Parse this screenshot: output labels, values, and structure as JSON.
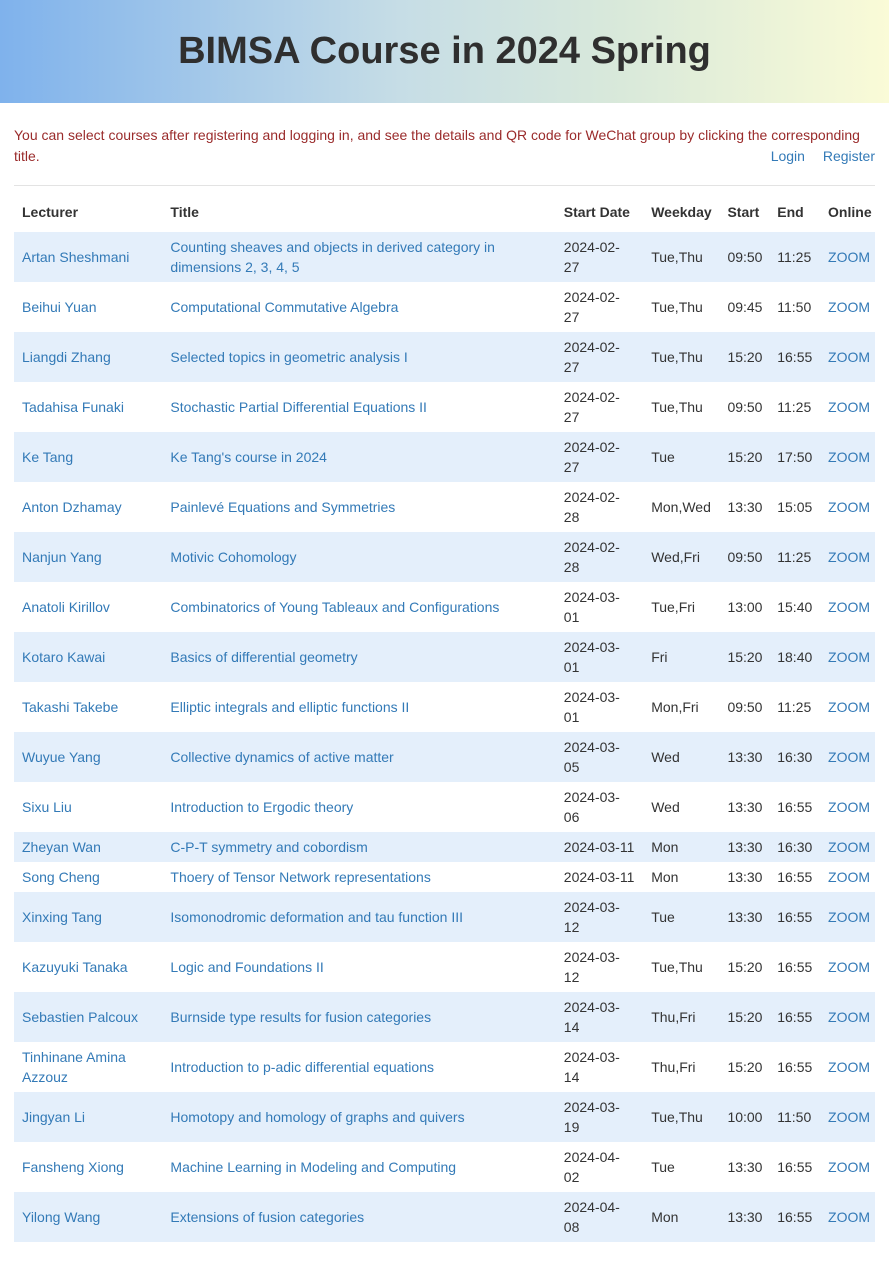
{
  "header": {
    "title": "BIMSA Course in 2024 Spring"
  },
  "intro": {
    "text": "You can select courses after registering and logging in, and see the details and QR code for WeChat group by clicking the corresponding title.",
    "login_label": "Login",
    "register_label": "Register"
  },
  "colors": {
    "header_gradient_left": "#7fb2ec",
    "header_gradient_right": "#fafbd7",
    "link": "#337ab7",
    "intro_text": "#9a2b2b",
    "row_stripe": "#e4effb"
  },
  "table": {
    "columns": [
      "Lecturer",
      "Title",
      "Start Date",
      "Weekday",
      "Start",
      "End",
      "Online"
    ],
    "rows": [
      {
        "lecturer": "Artan Sheshmani",
        "title": "Counting sheaves and objects in derived category in dimensions 2, 3, 4, 5",
        "start_date": "2024-02-27",
        "weekday": "Tue,Thu",
        "start": "09:50",
        "end": "11:25",
        "online": "ZOOM"
      },
      {
        "lecturer": "Beihui Yuan",
        "title": "Computational Commutative Algebra",
        "start_date": "2024-02-27",
        "weekday": "Tue,Thu",
        "start": "09:45",
        "end": "11:50",
        "online": "ZOOM"
      },
      {
        "lecturer": "Liangdi Zhang",
        "title": "Selected topics in geometric analysis I",
        "start_date": "2024-02-27",
        "weekday": "Tue,Thu",
        "start": "15:20",
        "end": "16:55",
        "online": "ZOOM"
      },
      {
        "lecturer": "Tadahisa Funaki",
        "title": "Stochastic Partial Differential Equations II",
        "start_date": "2024-02-27",
        "weekday": "Tue,Thu",
        "start": "09:50",
        "end": "11:25",
        "online": "ZOOM"
      },
      {
        "lecturer": "Ke Tang",
        "title": "Ke Tang's course in 2024",
        "start_date": "2024-02-27",
        "weekday": "Tue",
        "start": "15:20",
        "end": "17:50",
        "online": "ZOOM"
      },
      {
        "lecturer": "Anton Dzhamay",
        "title": "Painlevé Equations and Symmetries",
        "start_date": "2024-02-28",
        "weekday": "Mon,Wed",
        "start": "13:30",
        "end": "15:05",
        "online": "ZOOM"
      },
      {
        "lecturer": "Nanjun Yang",
        "title": "Motivic Cohomology",
        "start_date": "2024-02-28",
        "weekday": "Wed,Fri",
        "start": "09:50",
        "end": "11:25",
        "online": "ZOOM"
      },
      {
        "lecturer": "Anatoli Kirillov",
        "title": "Combinatorics of Young Tableaux and Configurations",
        "start_date": "2024-03-01",
        "weekday": "Tue,Fri",
        "start": "13:00",
        "end": "15:40",
        "online": "ZOOM"
      },
      {
        "lecturer": "Kotaro Kawai",
        "title": "Basics of differential geometry",
        "start_date": "2024-03-01",
        "weekday": "Fri",
        "start": "15:20",
        "end": "18:40",
        "online": "ZOOM"
      },
      {
        "lecturer": "Takashi Takebe",
        "title": "Elliptic integrals and elliptic functions II",
        "start_date": "2024-03-01",
        "weekday": "Mon,Fri",
        "start": "09:50",
        "end": "11:25",
        "online": "ZOOM"
      },
      {
        "lecturer": "Wuyue Yang",
        "title": "Collective dynamics of active matter",
        "start_date": "2024-03-05",
        "weekday": "Wed",
        "start": "13:30",
        "end": "16:30",
        "online": "ZOOM"
      },
      {
        "lecturer": "Sixu Liu",
        "title": "Introduction to Ergodic theory",
        "start_date": "2024-03-06",
        "weekday": "Wed",
        "start": "13:30",
        "end": "16:55",
        "online": "ZOOM"
      },
      {
        "lecturer": "Zheyan Wan",
        "title": "C-P-T symmetry and cobordism",
        "start_date": "2024-03-11",
        "weekday": "Mon",
        "start": "13:30",
        "end": "16:30",
        "online": "ZOOM"
      },
      {
        "lecturer": "Song Cheng",
        "title": "Thoery of Tensor Network representations",
        "start_date": "2024-03-11",
        "weekday": "Mon",
        "start": "13:30",
        "end": "16:55",
        "online": "ZOOM"
      },
      {
        "lecturer": "Xinxing Tang",
        "title": "Isomonodromic deformation and tau function III",
        "start_date": "2024-03-12",
        "weekday": "Tue",
        "start": "13:30",
        "end": "16:55",
        "online": "ZOOM"
      },
      {
        "lecturer": "Kazuyuki Tanaka",
        "title": "Logic and Foundations II",
        "start_date": "2024-03-12",
        "weekday": "Tue,Thu",
        "start": "15:20",
        "end": "16:55",
        "online": "ZOOM"
      },
      {
        "lecturer": "Sebastien Palcoux",
        "title": "Burnside type results for fusion categories",
        "start_date": "2024-03-14",
        "weekday": "Thu,Fri",
        "start": "15:20",
        "end": "16:55",
        "online": "ZOOM"
      },
      {
        "lecturer": "Tinhinane Amina Azzouz",
        "title": "Introduction to p-adic differential equations",
        "start_date": "2024-03-14",
        "weekday": "Thu,Fri",
        "start": "15:20",
        "end": "16:55",
        "online": "ZOOM"
      },
      {
        "lecturer": "Jingyan Li",
        "title": "Homotopy and homology of graphs and quivers",
        "start_date": "2024-03-19",
        "weekday": "Tue,Thu",
        "start": "10:00",
        "end": "11:50",
        "online": "ZOOM"
      },
      {
        "lecturer": "Fansheng Xiong",
        "title": "Machine Learning in Modeling and Computing",
        "start_date": "2024-04-02",
        "weekday": "Tue",
        "start": "13:30",
        "end": "16:55",
        "online": "ZOOM"
      },
      {
        "lecturer": "Yilong Wang",
        "title": "Extensions of fusion categories",
        "start_date": "2024-04-08",
        "weekday": "Mon",
        "start": "13:30",
        "end": "16:55",
        "online": "ZOOM"
      }
    ]
  }
}
